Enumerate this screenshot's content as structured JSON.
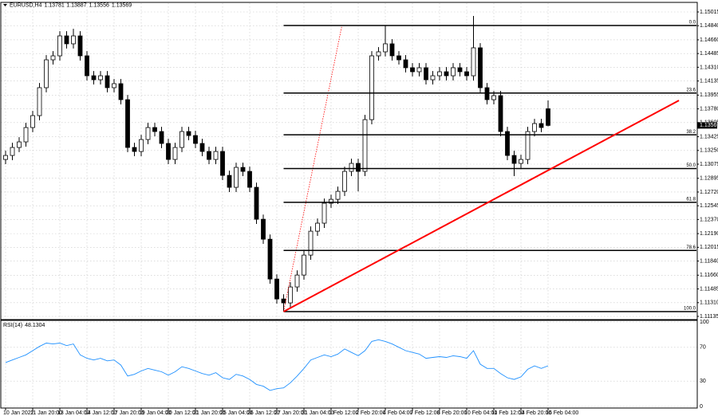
{
  "chart_data": [
    {
      "type": "candlestick",
      "symbol": "EURUSD,H4",
      "categories": [
        "10 Jan 2022",
        null,
        null,
        null,
        "11 Jan 20:00",
        null,
        null,
        null,
        "13 Jan 04:00",
        null,
        null,
        null,
        "14 Jan 12:00",
        null,
        null,
        null,
        "17 Jan 20:00",
        null,
        null,
        null,
        "19 Jan 04:00",
        null,
        null,
        null,
        "20 Jan 12:00",
        null,
        null,
        null,
        "21 Jan 20:00",
        null,
        null,
        null,
        "25 Jan 04:00",
        null,
        null,
        null,
        "26 Jan 12:00",
        null,
        null,
        null,
        "27 Jan 20:00",
        null,
        null,
        null,
        "31 Jan 04:00",
        null,
        null,
        null,
        "1 Feb 12:00",
        null,
        null,
        null,
        "2 Feb 20:00",
        null,
        null,
        null,
        "4 Feb 04:00",
        null,
        null,
        null,
        "7 Feb 12:00",
        null,
        null,
        null,
        "8 Feb 20:00",
        null,
        null,
        null,
        "10 Feb 04:00",
        null,
        null,
        null,
        "11 Feb 12:00",
        null,
        null,
        null,
        "14 Feb 20:00",
        null,
        null,
        null,
        "16 Feb 04:00"
      ],
      "candles": [
        [
          1.13135,
          1.13246,
          1.13075,
          1.13186
        ],
        [
          1.13186,
          1.13348,
          1.13126,
          1.13288
        ],
        [
          1.13288,
          1.13419,
          1.13228,
          1.13359
        ],
        [
          1.13359,
          1.13602,
          1.13299,
          1.13542
        ],
        [
          1.13542,
          1.13754,
          1.13482,
          1.13694
        ],
        [
          1.13694,
          1.1411,
          1.13634,
          1.1405
        ],
        [
          1.1405,
          1.14465,
          1.1399,
          1.14405
        ],
        [
          1.14405,
          1.14516,
          1.14345,
          1.14456
        ],
        [
          1.14456,
          1.1477,
          1.14396,
          1.1471
        ],
        [
          1.1471,
          1.1477,
          1.14549,
          1.14609
        ],
        [
          1.14609,
          1.148,
          1.14549,
          1.1471
        ],
        [
          1.1471,
          1.1477,
          1.14396,
          1.14456
        ],
        [
          1.14456,
          1.14516,
          1.14142,
          1.14202
        ],
        [
          1.14202,
          1.14262,
          1.14091,
          1.14151
        ],
        [
          1.14151,
          1.14262,
          1.14091,
          1.14202
        ],
        [
          1.14202,
          1.14262,
          1.1399,
          1.1405
        ],
        [
          1.1405,
          1.14161,
          1.1399,
          1.14101
        ],
        [
          1.14101,
          1.14161,
          1.13837,
          1.13897
        ],
        [
          1.13897,
          1.13957,
          1.13228,
          1.13288
        ],
        [
          1.13288,
          1.13348,
          1.13177,
          1.13237
        ],
        [
          1.13237,
          1.13449,
          1.13177,
          1.13389
        ],
        [
          1.13389,
          1.13602,
          1.13329,
          1.13542
        ],
        [
          1.13542,
          1.13602,
          1.13431,
          1.13491
        ],
        [
          1.13491,
          1.13551,
          1.13279,
          1.13339
        ],
        [
          1.13339,
          1.13399,
          1.13075,
          1.13135
        ],
        [
          1.13135,
          1.13348,
          1.13075,
          1.13288
        ],
        [
          1.13288,
          1.13551,
          1.13228,
          1.13491
        ],
        [
          1.13491,
          1.13551,
          1.1338,
          1.1344
        ],
        [
          1.1344,
          1.135,
          1.13279,
          1.13339
        ],
        [
          1.13339,
          1.13399,
          1.13177,
          1.13237
        ],
        [
          1.13237,
          1.13297,
          1.13075,
          1.13135
        ],
        [
          1.13135,
          1.13297,
          1.13075,
          1.13237
        ],
        [
          1.13237,
          1.13297,
          1.12872,
          1.12932
        ],
        [
          1.12932,
          1.12992,
          1.1272,
          1.1278
        ],
        [
          1.1278,
          1.13094,
          1.1272,
          1.13034
        ],
        [
          1.13034,
          1.13094,
          1.12923,
          1.12983
        ],
        [
          1.12983,
          1.13043,
          1.1272,
          1.1278
        ],
        [
          1.1278,
          1.1284,
          1.12313,
          1.12373
        ],
        [
          1.12373,
          1.12433,
          1.12059,
          1.12119
        ],
        [
          1.12119,
          1.12179,
          1.11551,
          1.11611
        ],
        [
          1.11611,
          1.11671,
          1.11297,
          1.11357
        ],
        [
          1.11357,
          1.11417,
          1.11196,
          1.11307
        ],
        [
          1.11307,
          1.1157,
          1.11247,
          1.1151
        ],
        [
          1.1151,
          1.11722,
          1.1145,
          1.11662
        ],
        [
          1.11662,
          1.11976,
          1.11602,
          1.11916
        ],
        [
          1.11916,
          1.12281,
          1.11856,
          1.12221
        ],
        [
          1.12221,
          1.12383,
          1.12161,
          1.12323
        ],
        [
          1.12323,
          1.12637,
          1.12263,
          1.12577
        ],
        [
          1.12577,
          1.12687,
          1.12517,
          1.12627
        ],
        [
          1.12627,
          1.12789,
          1.12567,
          1.12729
        ],
        [
          1.12729,
          1.13043,
          1.12669,
          1.12983
        ],
        [
          1.12983,
          1.13145,
          1.12923,
          1.13085
        ],
        [
          1.13085,
          1.13145,
          1.12729,
          1.12983
        ],
        [
          1.12983,
          1.13703,
          1.12923,
          1.13643
        ],
        [
          1.13643,
          1.14516,
          1.13583,
          1.14456
        ],
        [
          1.14456,
          1.14567,
          1.14396,
          1.14507
        ],
        [
          1.14507,
          1.14842,
          1.14447,
          1.14609
        ],
        [
          1.14609,
          1.14669,
          1.14396,
          1.14456
        ],
        [
          1.14456,
          1.14516,
          1.14345,
          1.14405
        ],
        [
          1.14405,
          1.14465,
          1.14244,
          1.14304
        ],
        [
          1.14304,
          1.14364,
          1.14193,
          1.14253
        ],
        [
          1.14253,
          1.14364,
          1.14193,
          1.14304
        ],
        [
          1.14304,
          1.14364,
          1.14091,
          1.14151
        ],
        [
          1.14151,
          1.14262,
          1.14091,
          1.14202
        ],
        [
          1.14202,
          1.14313,
          1.14142,
          1.14253
        ],
        [
          1.14253,
          1.14313,
          1.14142,
          1.14202
        ],
        [
          1.14202,
          1.14364,
          1.14142,
          1.14304
        ],
        [
          1.14304,
          1.14364,
          1.14193,
          1.14253
        ],
        [
          1.14253,
          1.14313,
          1.14142,
          1.14202
        ],
        [
          1.14202,
          1.14964,
          1.14142,
          1.14558
        ],
        [
          1.14558,
          1.14618,
          1.1399,
          1.1405
        ],
        [
          1.1405,
          1.1411,
          1.13837,
          1.13897
        ],
        [
          1.13897,
          1.14008,
          1.13837,
          1.13948
        ],
        [
          1.13948,
          1.14008,
          1.13431,
          1.13491
        ],
        [
          1.13491,
          1.13551,
          1.13126,
          1.13186
        ],
        [
          1.13186,
          1.13246,
          1.12923,
          1.13085
        ],
        [
          1.13085,
          1.13195,
          1.13025,
          1.13135
        ],
        [
          1.13135,
          1.13551,
          1.13075,
          1.13491
        ],
        [
          1.13491,
          1.13653,
          1.13431,
          1.13593
        ],
        [
          1.13593,
          1.13653,
          1.13482,
          1.13542
        ],
        [
          1.13781,
          1.13887,
          1.13556,
          1.13569
        ]
      ],
      "bull_color": "#ffffff",
      "bear_color": "#000000",
      "outline_color": "#000000",
      "ylim": [
        1.11135,
        1.15015
      ],
      "yticks": [
        1.15015,
        {
          "value": 1.1484,
          "label": "1.14840"
        },
        {
          "value": 1.1466,
          "label": "1.14660"
        },
        1.14485,
        {
          "value": 1.1431,
          "label": "1.14310"
        },
        1.14135,
        1.13955,
        {
          "value": 1.1378,
          "label": "1.13780"
        },
        1.13605,
        1.13425,
        {
          "value": 1.1325,
          "label": "1.13250"
        },
        1.13075,
        1.12895,
        {
          "value": 1.1272,
          "label": "1.12720"
        },
        1.12545,
        {
          "value": 1.1237,
          "label": "1.12370"
        },
        {
          "value": 1.1219,
          "label": "1.12190"
        },
        1.12015,
        {
          "value": 1.1184,
          "label": "1.11840"
        },
        {
          "value": 1.1166,
          "label": "1.11660"
        },
        1.11485,
        {
          "value": 1.1131,
          "label": "1.11310"
        },
        1.11135
      ],
      "grid": true,
      "fibonacci": {
        "color": "#000000",
        "anchor_color": "#ff0000",
        "from": {
          "index": 41,
          "price": 1.11196
        },
        "to": {
          "index": 49.6,
          "price": 1.14842
        },
        "levels": [
          {
            "label": "0.0",
            "price": 1.14842
          },
          {
            "label": "23.6",
            "price": 1.13982
          },
          {
            "label": "38.2",
            "price": 1.13449
          },
          {
            "label": "50.0",
            "price": 1.13019
          },
          {
            "label": "61.8",
            "price": 1.12589
          },
          {
            "label": "78.6",
            "price": 1.11976
          },
          {
            "label": "100.0",
            "price": 1.11196
          }
        ]
      },
      "trendline": {
        "color": "#ff0000",
        "from": {
          "index": 41,
          "price": 1.11196
        },
        "to": {
          "index": 99.3,
          "price": 1.13887
        }
      }
    },
    {
      "type": "line",
      "name": "RSI(14)",
      "color": "#1e90ff",
      "values": [
        52,
        55,
        58,
        61,
        66,
        71,
        75,
        74,
        75,
        72,
        74,
        61,
        57,
        55,
        57,
        54,
        55,
        49,
        36,
        38,
        42,
        45,
        43,
        41,
        37,
        41,
        47,
        45,
        42,
        39,
        37,
        40,
        34,
        32,
        38,
        36,
        32,
        26,
        24,
        19,
        21,
        22,
        28,
        36,
        45,
        55,
        58,
        61,
        59,
        62,
        68,
        64,
        60,
        66,
        77,
        79,
        77,
        74,
        70,
        66,
        64,
        62,
        57,
        58,
        59,
        58,
        60,
        59,
        57,
        66,
        50,
        45,
        45,
        39,
        34,
        32,
        35,
        44,
        48,
        45,
        48.1304
      ],
      "ylim": [
        0,
        100
      ],
      "yticks": [
        100,
        70,
        30,
        0
      ],
      "grid": true
    }
  ]
}
